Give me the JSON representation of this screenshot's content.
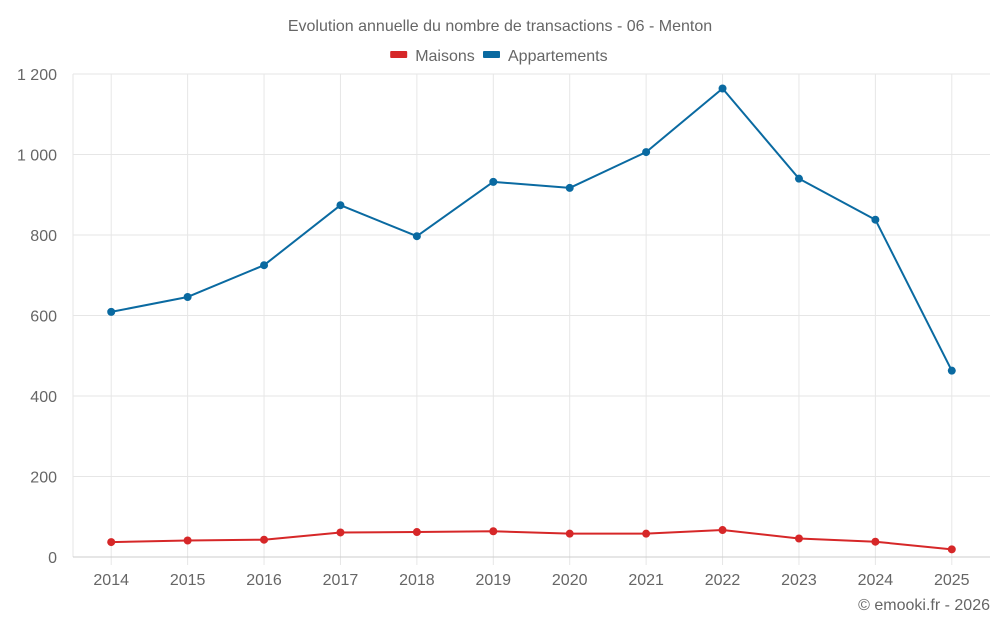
{
  "chart_data": {
    "type": "line",
    "title": "Evolution annuelle du nombre de transactions - 06 - Menton",
    "xlabel": "",
    "ylabel": "",
    "categories": [
      "2014",
      "2015",
      "2016",
      "2017",
      "2018",
      "2019",
      "2020",
      "2021",
      "2022",
      "2023",
      "2024",
      "2025"
    ],
    "series": [
      {
        "name": "Maisons",
        "color": "#d62728",
        "values": [
          37,
          41,
          43,
          61,
          62,
          64,
          58,
          58,
          67,
          46,
          38,
          19
        ]
      },
      {
        "name": "Appartements",
        "color": "#0a6aa1",
        "values": [
          609,
          646,
          725,
          874,
          797,
          932,
          917,
          1006,
          1164,
          940,
          838,
          463
        ]
      }
    ],
    "ylim": [
      0,
      1200
    ],
    "yticks": [
      0,
      200,
      400,
      600,
      800,
      1000,
      1200
    ],
    "ytick_labels": [
      "0",
      "200",
      "400",
      "600",
      "800",
      "1 000",
      "1 200"
    ],
    "grid": true,
    "legend_position": "top-center"
  },
  "credit": "© emooki.fr - 2026"
}
